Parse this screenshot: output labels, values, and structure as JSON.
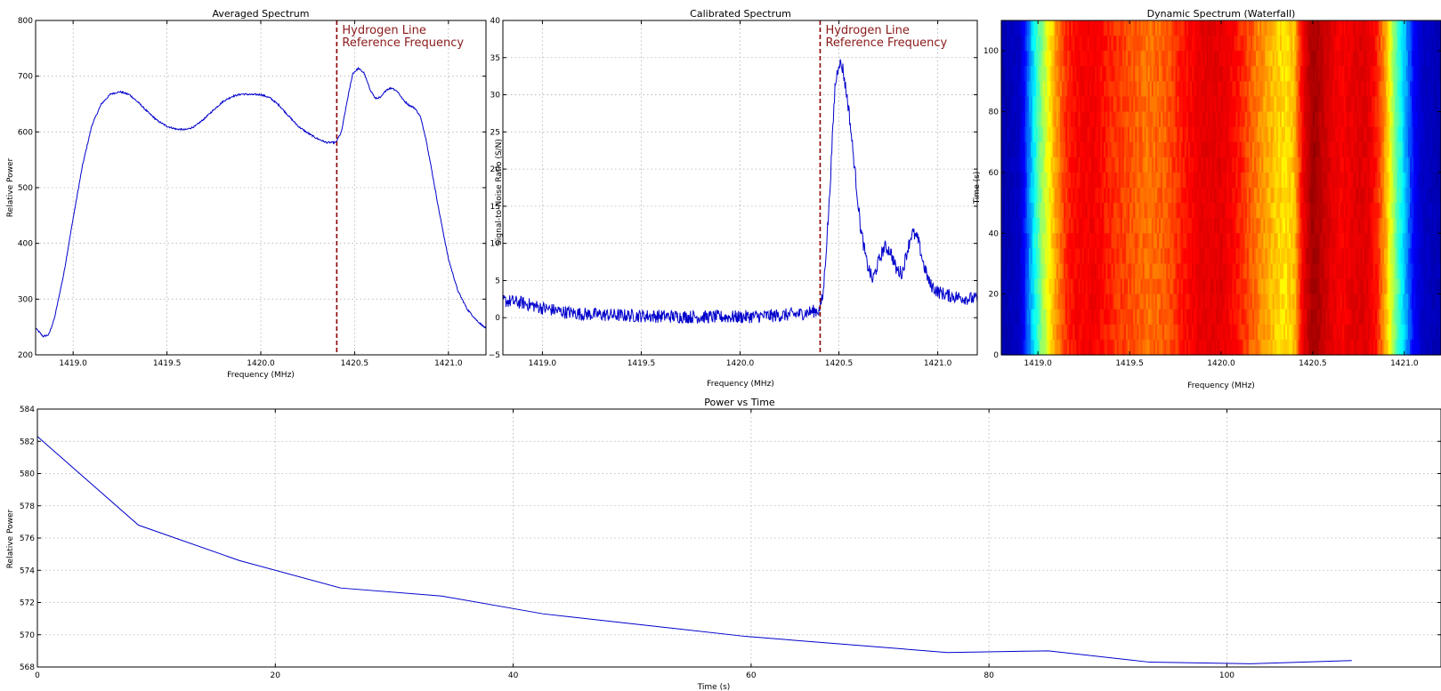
{
  "chart_data": [
    {
      "id": "averaged",
      "type": "line",
      "title": "Averaged Spectrum",
      "xlabel": "Frequency (MHz)",
      "ylabel": "Relative Power",
      "xlim": [
        1418.8,
        1421.2
      ],
      "ylim": [
        200,
        800
      ],
      "xticks": [
        1419.0,
        1419.5,
        1420.0,
        1420.5,
        1421.0
      ],
      "xtick_labels": [
        "1419.0",
        "1419.5",
        "1420.0",
        "1420.5",
        "1421.0"
      ],
      "yticks": [
        200,
        300,
        400,
        500,
        600,
        700,
        800
      ],
      "ytick_labels": [
        "200",
        "300",
        "400",
        "500",
        "600",
        "700",
        "800"
      ],
      "grid": true,
      "reference_line": {
        "x": 1420.405,
        "label_lines": [
          "Hydrogen Line",
          "Reference Frequency"
        ]
      },
      "noise": 1.5,
      "x": [
        1418.8,
        1418.84,
        1418.87,
        1418.9,
        1418.95,
        1419.0,
        1419.05,
        1419.1,
        1419.15,
        1419.2,
        1419.25,
        1419.3,
        1419.35,
        1419.4,
        1419.45,
        1419.5,
        1419.55,
        1419.6,
        1419.65,
        1419.7,
        1419.75,
        1419.8,
        1419.85,
        1419.9,
        1419.95,
        1420.0,
        1420.05,
        1420.1,
        1420.15,
        1420.2,
        1420.25,
        1420.3,
        1420.35,
        1420.4,
        1420.43,
        1420.46,
        1420.49,
        1420.52,
        1420.55,
        1420.58,
        1420.61,
        1420.64,
        1420.67,
        1420.7,
        1420.73,
        1420.76,
        1420.79,
        1420.82,
        1420.85,
        1420.88,
        1420.91,
        1420.95,
        1421.0,
        1421.05,
        1421.1,
        1421.15,
        1421.2
      ],
      "y": [
        248,
        233,
        236,
        265,
        345,
        445,
        540,
        612,
        650,
        668,
        672,
        667,
        652,
        635,
        620,
        610,
        605,
        604,
        610,
        624,
        640,
        655,
        664,
        668,
        667,
        667,
        661,
        647,
        628,
        610,
        598,
        588,
        581,
        581,
        600,
        655,
        705,
        714,
        706,
        678,
        660,
        662,
        676,
        679,
        672,
        657,
        648,
        643,
        628,
        588,
        533,
        458,
        372,
        315,
        282,
        262,
        247
      ]
    },
    {
      "id": "calibrated",
      "type": "line",
      "title": "Calibrated Spectrum",
      "xlabel": "Frequency (MHz)",
      "ylabel": "Signal-to-Noise Ratio (S/N)",
      "xlim": [
        1418.8,
        1421.2
      ],
      "ylim": [
        -5,
        40
      ],
      "xticks": [
        1419.0,
        1419.5,
        1420.0,
        1420.5,
        1421.0
      ],
      "xtick_labels": [
        "1419.0",
        "1419.5",
        "1420.0",
        "1420.5",
        "1421.0"
      ],
      "yticks": [
        -5,
        0,
        5,
        10,
        15,
        20,
        25,
        30,
        35,
        40
      ],
      "ytick_labels": [
        "−5",
        "0",
        "5",
        "10",
        "15",
        "20",
        "25",
        "30",
        "35",
        "40"
      ],
      "grid": true,
      "reference_line": {
        "x": 1420.405,
        "label_lines": [
          "Hydrogen Line",
          "Reference Frequency"
        ]
      },
      "noise": 0.9,
      "x": [
        1418.8,
        1418.9,
        1419.0,
        1419.1,
        1419.2,
        1419.4,
        1419.6,
        1419.8,
        1420.0,
        1420.2,
        1420.3,
        1420.4,
        1420.42,
        1420.45,
        1420.48,
        1420.5,
        1420.52,
        1420.55,
        1420.58,
        1420.61,
        1420.64,
        1420.67,
        1420.7,
        1420.73,
        1420.76,
        1420.79,
        1420.82,
        1420.85,
        1420.87,
        1420.9,
        1420.93,
        1420.96,
        1421.0,
        1421.05,
        1421.1,
        1421.15,
        1421.2
      ],
      "y": [
        2.3,
        2.0,
        1.3,
        0.8,
        0.5,
        0.3,
        0.2,
        0.1,
        0.1,
        0.3,
        0.5,
        1.0,
        3.0,
        15.0,
        31.0,
        34.5,
        33.5,
        28.0,
        20.0,
        12.0,
        7.5,
        5.0,
        7.5,
        9.5,
        9.0,
        6.5,
        6.0,
        9.5,
        11.5,
        10.5,
        7.0,
        4.5,
        3.5,
        3.0,
        2.8,
        2.6,
        2.5
      ]
    },
    {
      "id": "waterfall",
      "type": "heatmap",
      "title": "Dynamic Spectrum (Waterfall)",
      "xlabel": "Frequency (MHz)",
      "ylabel": "Time (s)",
      "xlim": [
        1418.8,
        1421.2
      ],
      "ylim": [
        0,
        110
      ],
      "xticks": [
        1419.0,
        1419.5,
        1420.0,
        1420.5,
        1421.0
      ],
      "xtick_labels": [
        "1419.0",
        "1419.5",
        "1420.0",
        "1420.5",
        "1421.0"
      ],
      "yticks": [
        0,
        20,
        40,
        60,
        80,
        100
      ],
      "ytick_labels": [
        "0",
        "20",
        "40",
        "60",
        "80",
        "100"
      ],
      "colormap": "jet",
      "colormap_stops": [
        "#00008f",
        "#0000ff",
        "#00ffff",
        "#ffff00",
        "#ff0000",
        "#800000"
      ],
      "rows": 22,
      "x": [
        1418.8,
        1418.9,
        1418.95,
        1419.0,
        1419.05,
        1419.1,
        1419.15,
        1419.2,
        1419.3,
        1419.4,
        1419.5,
        1419.6,
        1419.7,
        1419.8,
        1419.9,
        1420.0,
        1420.1,
        1420.2,
        1420.3,
        1420.35,
        1420.4,
        1420.45,
        1420.5,
        1420.55,
        1420.6,
        1420.65,
        1420.7,
        1420.75,
        1420.8,
        1420.85,
        1420.9,
        1420.95,
        1421.0,
        1421.05,
        1421.1,
        1421.2
      ],
      "intensity": [
        0.05,
        0.1,
        0.3,
        0.46,
        0.58,
        0.68,
        0.76,
        0.8,
        0.82,
        0.77,
        0.74,
        0.71,
        0.73,
        0.79,
        0.84,
        0.84,
        0.78,
        0.7,
        0.64,
        0.62,
        0.65,
        0.83,
        0.95,
        0.9,
        0.84,
        0.81,
        0.83,
        0.85,
        0.84,
        0.78,
        0.66,
        0.5,
        0.36,
        0.2,
        0.1,
        0.06
      ]
    },
    {
      "id": "power",
      "type": "line",
      "title": "Power vs Time",
      "xlabel": "Time (s)",
      "ylabel": "Relative Power",
      "xlim": [
        0,
        118
      ],
      "ylim": [
        568,
        584
      ],
      "xticks": [
        0,
        20,
        40,
        60,
        80,
        100
      ],
      "xtick_labels": [
        "0",
        "20",
        "40",
        "60",
        "80",
        "100"
      ],
      "yticks": [
        568,
        570,
        572,
        574,
        576,
        578,
        580,
        582,
        584
      ],
      "ytick_labels": [
        "568",
        "570",
        "572",
        "574",
        "576",
        "578",
        "580",
        "582",
        "584"
      ],
      "grid": true,
      "noise": 0,
      "x": [
        0,
        8.5,
        17,
        25.5,
        34,
        42.5,
        51,
        59.5,
        68,
        76.5,
        85,
        93.5,
        102,
        110.5
      ],
      "y": [
        582.3,
        576.8,
        574.6,
        572.9,
        572.4,
        571.3,
        570.6,
        569.9,
        569.4,
        568.9,
        569.0,
        568.3,
        568.2,
        568.4
      ]
    }
  ]
}
